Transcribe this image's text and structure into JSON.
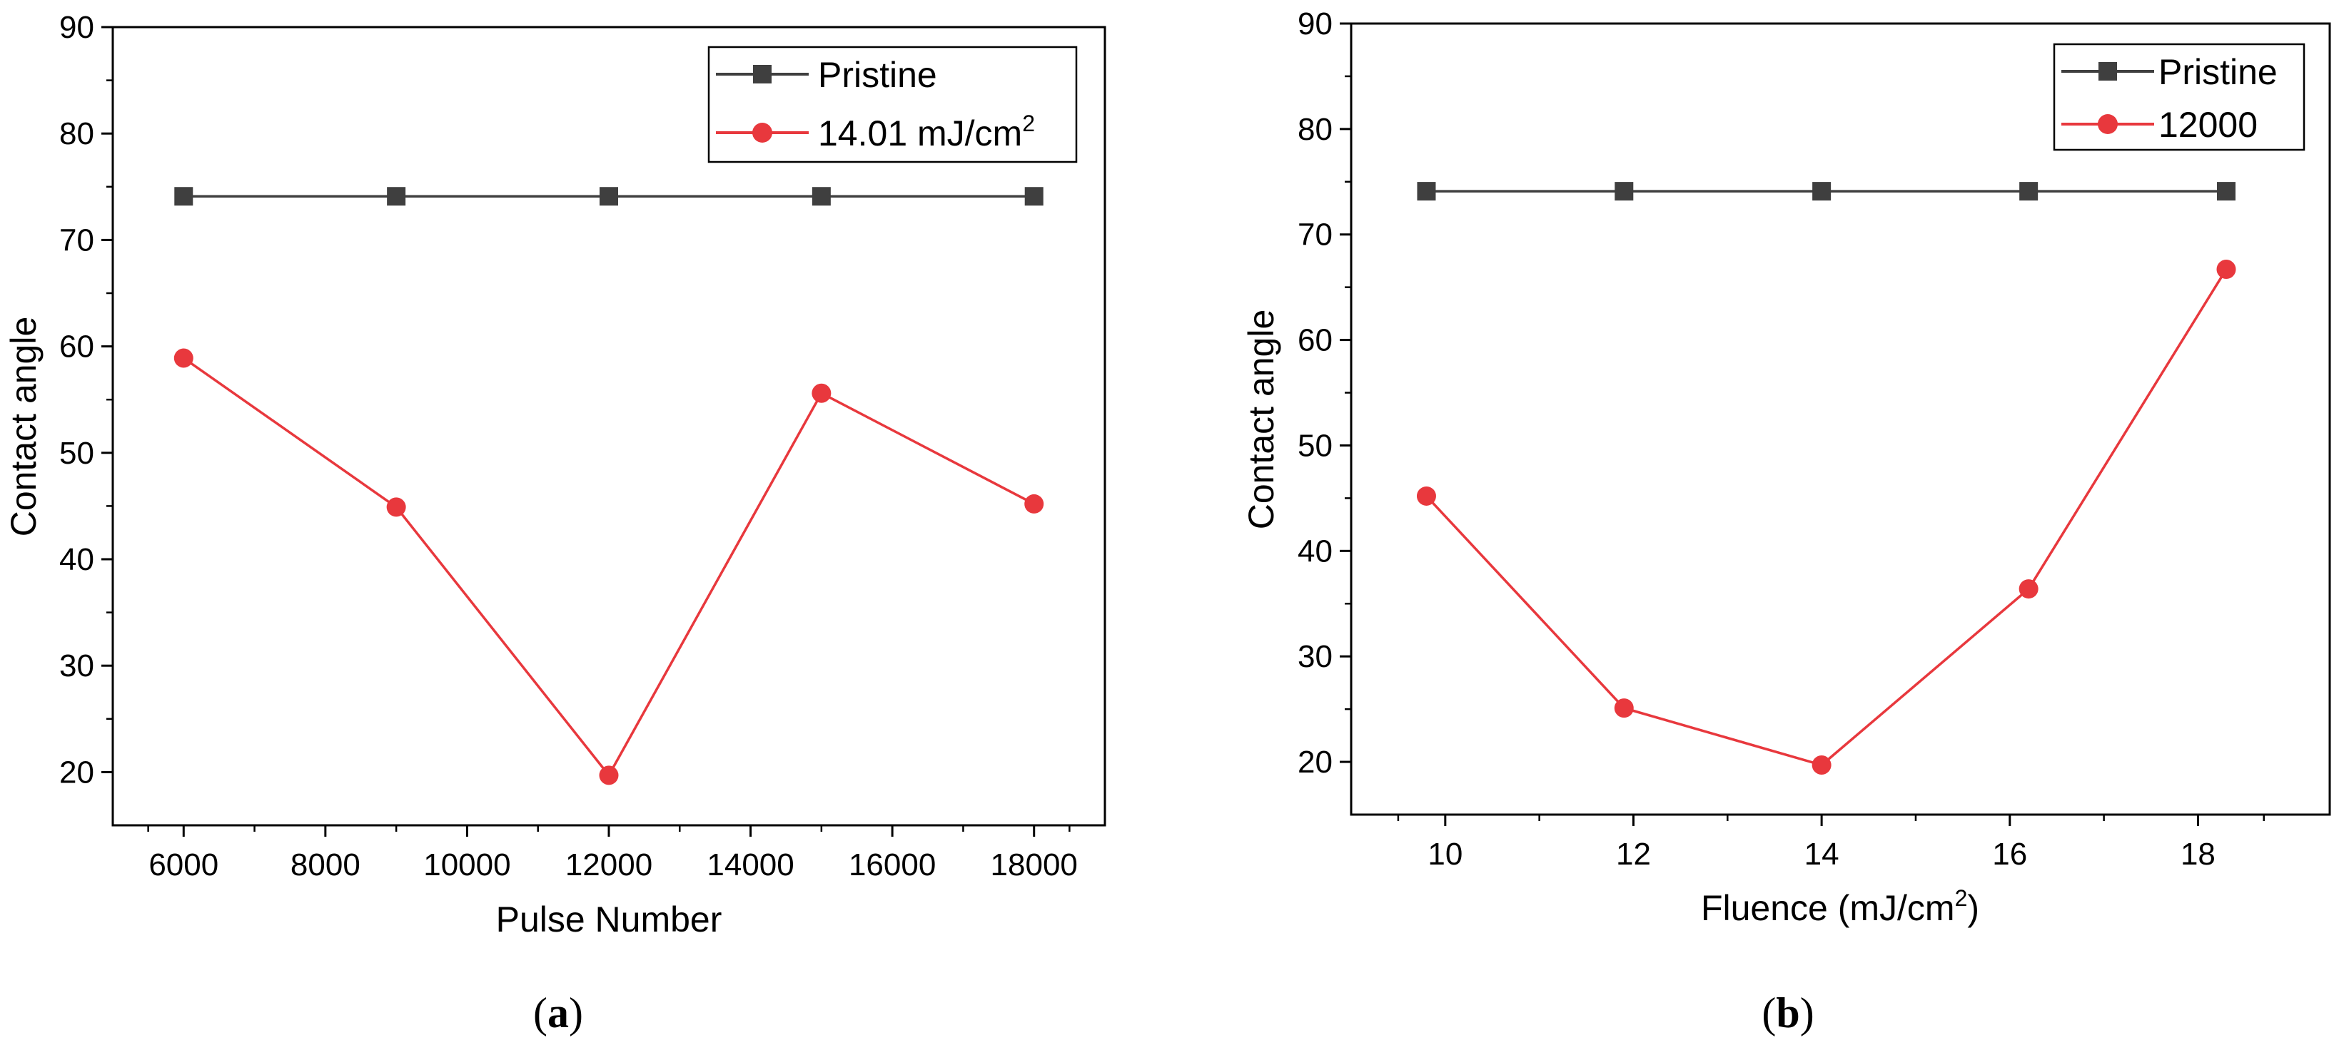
{
  "chart_data": [
    {
      "type": "line",
      "panel_label": "a",
      "title": "",
      "xlabel": "Pulse Number",
      "ylabel": "Contact angle",
      "xlim": [
        5000,
        19000
      ],
      "ylim": [
        15,
        90
      ],
      "xticks": [
        6000,
        8000,
        10000,
        12000,
        14000,
        16000,
        18000
      ],
      "xtick_labels": [
        "6000",
        "8000",
        "10000",
        "12000",
        "14000",
        "16000",
        "18000"
      ],
      "yticks": [
        20,
        30,
        40,
        50,
        60,
        70,
        80,
        90
      ],
      "ytick_labels": [
        "20",
        "30",
        "40",
        "50",
        "60",
        "70",
        "80",
        "90"
      ],
      "grid": false,
      "legend_position": "top-right",
      "series": [
        {
          "name": "Pristine",
          "name_base": "Pristine",
          "name_sup": "",
          "color": "#3f3f3f",
          "marker": "square",
          "x": [
            6000,
            9000,
            12000,
            15000,
            18000
          ],
          "y": [
            74.1,
            74.1,
            74.1,
            74.1,
            74.1
          ]
        },
        {
          "name": "14.01 mJ/cm2",
          "name_base": "14.01 mJ/cm",
          "name_sup": "2",
          "color": "#e8383d",
          "marker": "circle",
          "x": [
            6000,
            9000,
            12000,
            15000,
            18000
          ],
          "y": [
            58.9,
            44.9,
            19.7,
            55.6,
            45.2
          ]
        }
      ]
    },
    {
      "type": "line",
      "panel_label": "b",
      "title": "",
      "xlabel": "Fluence (mJ/cm2)",
      "xlabel_base": "Fluence (mJ/cm",
      "xlabel_sup": "2",
      "xlabel_end": ")",
      "ylabel": "Contact angle",
      "xlim": [
        9,
        19.4
      ],
      "ylim": [
        15,
        90
      ],
      "xticks": [
        10,
        12,
        14,
        16,
        18
      ],
      "xtick_labels": [
        "10",
        "12",
        "14",
        "16",
        "18"
      ],
      "yticks": [
        20,
        30,
        40,
        50,
        60,
        70,
        80,
        90
      ],
      "ytick_labels": [
        "20",
        "30",
        "40",
        "50",
        "60",
        "70",
        "80",
        "90"
      ],
      "grid": false,
      "legend_position": "top-right",
      "series": [
        {
          "name": "Pristine",
          "name_base": "Pristine",
          "name_sup": "",
          "color": "#3f3f3f",
          "marker": "square",
          "x": [
            9.8,
            11.9,
            14.0,
            16.2,
            18.3
          ],
          "y": [
            74.1,
            74.1,
            74.1,
            74.1,
            74.1
          ]
        },
        {
          "name": "12000",
          "name_base": "12000",
          "name_sup": "",
          "color": "#e8383d",
          "marker": "circle",
          "x": [
            9.8,
            11.9,
            14.0,
            16.2,
            18.3
          ],
          "y": [
            45.2,
            25.1,
            19.7,
            36.4,
            66.7
          ]
        }
      ]
    }
  ]
}
